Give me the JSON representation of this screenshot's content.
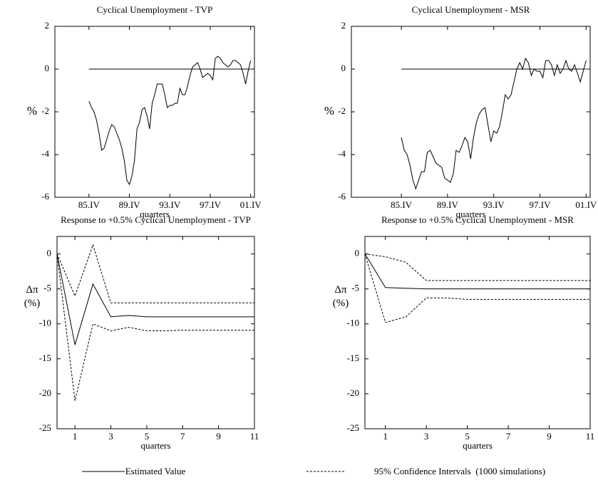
{
  "chart_data": [
    {
      "type": "line",
      "title": "Cyclical Unemployment - TVP",
      "ylabel": [
        "%"
      ],
      "xlabel": "quarters",
      "x": [
        0,
        1,
        2,
        3,
        4,
        5,
        6,
        7,
        8,
        9,
        10,
        11,
        12,
        13,
        14,
        15,
        16,
        17,
        18,
        19,
        20,
        21,
        22,
        23,
        24,
        25,
        26,
        27,
        28,
        29,
        30,
        31,
        32,
        33,
        34,
        35,
        36,
        37,
        38,
        39,
        40,
        41,
        42,
        43,
        44,
        45,
        46,
        47,
        48,
        49,
        50,
        51,
        52,
        53,
        54,
        55,
        56,
        57,
        58,
        59,
        60,
        61,
        62,
        63,
        64
      ],
      "xlim": [
        -13.5,
        65.5
      ],
      "xticks": [
        {
          "value": 0,
          "label": "85.IV"
        },
        {
          "value": 16,
          "label": "89.IV"
        },
        {
          "value": 32,
          "label": "93.IV"
        },
        {
          "value": 48,
          "label": "97.IV"
        },
        {
          "value": 64,
          "label": "01.IV"
        }
      ],
      "ylim": [
        -6,
        2
      ],
      "yticks": [
        -6,
        -4,
        -2,
        0,
        2
      ],
      "series": [
        {
          "style": "solid",
          "color": "#000000",
          "values": [
            -1.5,
            -1.8,
            -2.0,
            -2.4,
            -3.0,
            -3.8,
            -3.7,
            -3.3,
            -2.9,
            -2.6,
            -2.7,
            -3.0,
            -3.3,
            -3.7,
            -4.3,
            -5.2,
            -5.4,
            -5.0,
            -4.3,
            -2.8,
            -2.5,
            -1.9,
            -1.8,
            -2.2,
            -2.8,
            -1.6,
            -1.2,
            -0.7,
            -0.7,
            -0.7,
            -1.2,
            -1.8,
            -1.7,
            -1.7,
            -1.6,
            -1.6,
            -0.9,
            -1.2,
            -1.2,
            -0.8,
            -0.3,
            0.1,
            0.2,
            0.3,
            0.0,
            -0.4,
            -0.3,
            -0.2,
            -0.3,
            -0.5,
            0.5,
            0.6,
            0.5,
            0.3,
            0.2,
            0.1,
            0.2,
            0.4,
            0.4,
            0.3,
            0.2,
            -0.2,
            -0.7,
            -0.1,
            0.4
          ]
        },
        {
          "style": "solid",
          "color": "#000000",
          "x": [
            0,
            64
          ],
          "values": [
            0,
            0
          ]
        }
      ]
    },
    {
      "type": "line",
      "title": "Cyclical Unemployment - MSR",
      "ylabel": [
        "%"
      ],
      "xlabel": "quarters",
      "x": [
        0,
        1,
        2,
        3,
        4,
        5,
        6,
        7,
        8,
        9,
        10,
        11,
        12,
        13,
        14,
        15,
        16,
        17,
        18,
        19,
        20,
        21,
        22,
        23,
        24,
        25,
        26,
        27,
        28,
        29,
        30,
        31,
        32,
        33,
        34,
        35,
        36,
        37,
        38,
        39,
        40,
        41,
        42,
        43,
        44,
        45,
        46,
        47,
        48,
        49,
        50,
        51,
        52,
        53,
        54,
        55,
        56,
        57,
        58,
        59,
        60,
        61,
        62,
        63,
        64
      ],
      "xlim": [
        -17.3,
        65.4
      ],
      "xticks": [
        {
          "value": 0,
          "label": "85.IV"
        },
        {
          "value": 16,
          "label": "89.IV"
        },
        {
          "value": 32,
          "label": "93.IV"
        },
        {
          "value": 48,
          "label": "97.IV"
        },
        {
          "value": 64,
          "label": "01.IV"
        }
      ],
      "ylim": [
        -6,
        2
      ],
      "yticks": [
        -6,
        -4,
        -2,
        0,
        2
      ],
      "series": [
        {
          "style": "solid",
          "color": "#000000",
          "values": [
            -3.2,
            -3.8,
            -4.0,
            -4.5,
            -5.2,
            -5.6,
            -5.2,
            -4.8,
            -4.8,
            -3.9,
            -3.8,
            -4.1,
            -4.4,
            -4.5,
            -4.6,
            -5.1,
            -5.2,
            -5.3,
            -4.9,
            -3.8,
            -3.9,
            -3.6,
            -3.2,
            -3.4,
            -4.2,
            -3.2,
            -2.5,
            -2.1,
            -1.9,
            -1.8,
            -2.6,
            -3.4,
            -2.9,
            -3.0,
            -2.7,
            -2.0,
            -1.2,
            -1.4,
            -1.2,
            -0.6,
            0.0,
            0.3,
            0.0,
            0.5,
            0.3,
            -0.3,
            0.0,
            -0.1,
            -0.1,
            -0.4,
            0.4,
            0.4,
            0.2,
            -0.3,
            0.2,
            -0.2,
            0.0,
            0.4,
            0.0,
            -0.1,
            0.2,
            -0.2,
            -0.6,
            -0.1,
            0.4
          ]
        },
        {
          "style": "solid",
          "color": "#000000",
          "x": [
            0,
            64
          ],
          "values": [
            0,
            0
          ]
        }
      ]
    },
    {
      "type": "line",
      "title": "Response to +0.5% Cyclical Unemployment - TVP",
      "ylabel": [
        "Δπ",
        "(%)"
      ],
      "xlabel": "quarters",
      "x": [
        0,
        1,
        2,
        3,
        4,
        5,
        6,
        7,
        8,
        9,
        10,
        11
      ],
      "xlim": [
        0,
        11
      ],
      "xticks": [
        1,
        3,
        5,
        7,
        9,
        11
      ],
      "ylim": [
        -25,
        2.5
      ],
      "yticks": [
        -25,
        -20,
        -15,
        -10,
        -5,
        0
      ],
      "series": [
        {
          "style": "solid",
          "color": "#000000",
          "values": [
            0,
            -13,
            -4.3,
            -9,
            -8.8,
            -9,
            -9,
            -9,
            -9,
            -9,
            -9,
            -9
          ]
        },
        {
          "style": "dashed",
          "color": "#000000",
          "values": [
            0,
            -6,
            1.3,
            -7,
            -7,
            -7,
            -7,
            -7,
            -7,
            -7,
            -7,
            -7
          ]
        },
        {
          "style": "dashed",
          "color": "#000000",
          "values": [
            0,
            -21,
            -10,
            -11,
            -10.5,
            -11,
            -11,
            -10.9,
            -10.9,
            -10.9,
            -10.9,
            -10.9
          ]
        }
      ]
    },
    {
      "type": "line",
      "title": "Response to +0.5% Cyclical Unemployment - MSR",
      "ylabel": [
        "Δπ",
        "(%)"
      ],
      "xlabel": "quarters",
      "x": [
        0,
        1,
        2,
        3,
        4,
        5,
        6,
        7,
        8,
        9,
        10,
        11
      ],
      "xlim": [
        0,
        11
      ],
      "xticks": [
        1,
        3,
        5,
        7,
        9,
        11
      ],
      "ylim": [
        -25,
        2.5
      ],
      "yticks": [
        -25,
        -20,
        -15,
        -10,
        -5,
        0
      ],
      "series": [
        {
          "style": "solid",
          "color": "#000000",
          "values": [
            0,
            -4.8,
            -4.9,
            -5,
            -5,
            -5,
            -5,
            -5,
            -5,
            -5,
            -5,
            -5
          ]
        },
        {
          "style": "dashed",
          "color": "#000000",
          "values": [
            0,
            -0.4,
            -1.2,
            -3.8,
            -3.8,
            -3.8,
            -3.8,
            -3.8,
            -3.8,
            -3.8,
            -3.8,
            -3.8
          ]
        },
        {
          "style": "dashed",
          "color": "#000000",
          "values": [
            0,
            -9.8,
            -9,
            -6.3,
            -6.3,
            -6.5,
            -6.5,
            -6.5,
            -6.5,
            -6.5,
            -6.5,
            -6.5
          ]
        }
      ]
    }
  ],
  "legend": [
    {
      "name": "Estimated Value",
      "style": "solid"
    },
    {
      "name": "95% Confidence Intervals  (1000 simulations)",
      "style": "dashed"
    }
  ]
}
